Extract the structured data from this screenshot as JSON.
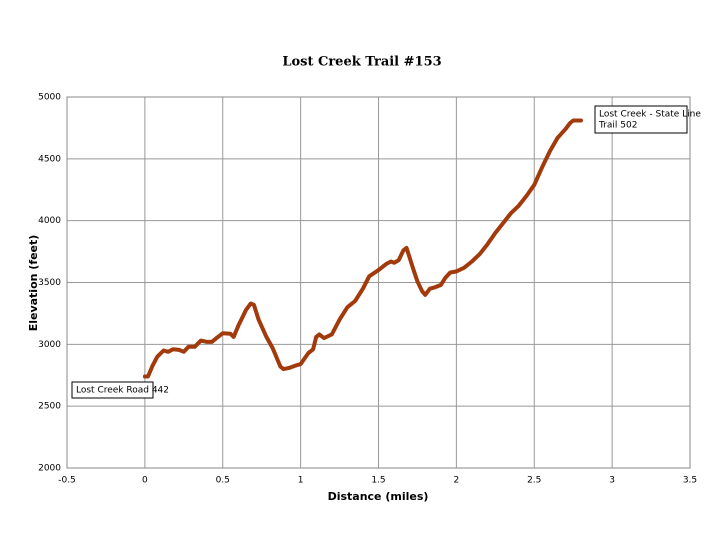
{
  "chart_data": {
    "type": "line",
    "title": "Lost Creek Trail #153",
    "x_label": "Distance (miles)",
    "y_label": "Elevation (feet)",
    "xlim": [
      -0.5,
      3.5
    ],
    "xticks": [
      -0.5,
      0,
      0.5,
      1,
      1.5,
      2,
      2.5,
      3,
      3.5
    ],
    "ylim": [
      2000,
      5000
    ],
    "yticks": [
      2000,
      2500,
      3000,
      3500,
      4000,
      4500,
      5000
    ],
    "grid": true,
    "series": [
      {
        "name": "Elevation",
        "color": "#a33a0c",
        "x": [
          0,
          0.02,
          0.05,
          0.08,
          0.12,
          0.15,
          0.18,
          0.22,
          0.25,
          0.28,
          0.32,
          0.36,
          0.4,
          0.43,
          0.46,
          0.5,
          0.55,
          0.57,
          0.6,
          0.65,
          0.68,
          0.7,
          0.73,
          0.78,
          0.82,
          0.87,
          0.89,
          0.93,
          0.97,
          1.0,
          1.05,
          1.08,
          1.1,
          1.12,
          1.15,
          1.2,
          1.25,
          1.3,
          1.35,
          1.4,
          1.44,
          1.5,
          1.55,
          1.58,
          1.6,
          1.63,
          1.66,
          1.68,
          1.7,
          1.72,
          1.75,
          1.78,
          1.8,
          1.83,
          1.86,
          1.9,
          1.93,
          1.96,
          2.0,
          2.05,
          2.1,
          2.15,
          2.2,
          2.25,
          2.3,
          2.35,
          2.4,
          2.45,
          2.5,
          2.55,
          2.6,
          2.65,
          2.7,
          2.73,
          2.75,
          2.8
        ],
        "values": [
          2740,
          2740,
          2830,
          2900,
          2950,
          2940,
          2960,
          2955,
          2940,
          2980,
          2980,
          3030,
          3020,
          3020,
          3050,
          3090,
          3085,
          3060,
          3150,
          3280,
          3330,
          3320,
          3200,
          3060,
          2970,
          2820,
          2800,
          2810,
          2830,
          2840,
          2930,
          2960,
          3060,
          3080,
          3050,
          3080,
          3200,
          3300,
          3350,
          3450,
          3550,
          3600,
          3650,
          3670,
          3660,
          3680,
          3760,
          3780,
          3700,
          3620,
          3510,
          3430,
          3400,
          3450,
          3460,
          3480,
          3540,
          3580,
          3590,
          3620,
          3670,
          3730,
          3810,
          3900,
          3980,
          4060,
          4120,
          4200,
          4290,
          4430,
          4560,
          4670,
          4740,
          4790,
          4810,
          4810
        ]
      }
    ],
    "annotations": [
      {
        "text": [
          "Lost Creek Road 442"
        ]
      },
      {
        "text": [
          "Lost Creek - State Line",
          "Trail 502"
        ]
      }
    ]
  }
}
